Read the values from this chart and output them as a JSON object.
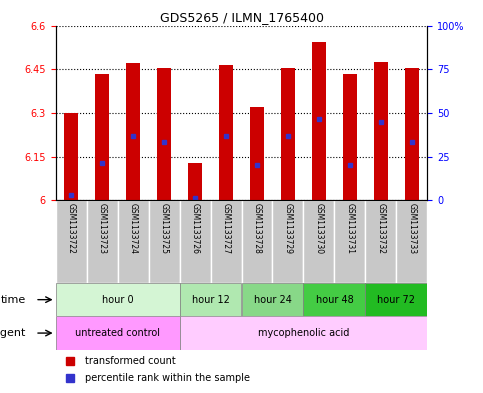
{
  "title": "GDS5265 / ILMN_1765400",
  "samples": [
    "GSM1133722",
    "GSM1133723",
    "GSM1133724",
    "GSM1133725",
    "GSM1133726",
    "GSM1133727",
    "GSM1133728",
    "GSM1133729",
    "GSM1133730",
    "GSM1133731",
    "GSM1133732",
    "GSM1133733"
  ],
  "bar_bottom": 6.0,
  "bar_tops": [
    6.3,
    6.435,
    6.47,
    6.455,
    6.13,
    6.465,
    6.32,
    6.455,
    6.545,
    6.435,
    6.475,
    6.455
  ],
  "blue_values": [
    6.02,
    6.13,
    6.22,
    6.2,
    6.01,
    6.22,
    6.12,
    6.22,
    6.28,
    6.12,
    6.27,
    6.2
  ],
  "ylim": [
    6.0,
    6.6
  ],
  "yticks": [
    6.0,
    6.15,
    6.3,
    6.45,
    6.6
  ],
  "ytick_labels": [
    "6",
    "6.15",
    "6.3",
    "6.45",
    "6.6"
  ],
  "right_yticks": [
    0,
    25,
    50,
    75,
    100
  ],
  "right_ytick_labels": [
    "0",
    "25",
    "50",
    "75",
    "100%"
  ],
  "bar_color": "#cc0000",
  "blue_color": "#3333cc",
  "plot_bg": "#ffffff",
  "sample_bg_color": "#c8c8c8",
  "time_groups": [
    {
      "label": "hour 0",
      "start": 0,
      "end": 4,
      "color": "#d4f5d4"
    },
    {
      "label": "hour 12",
      "start": 4,
      "end": 6,
      "color": "#b0e8b0"
    },
    {
      "label": "hour 24",
      "start": 6,
      "end": 8,
      "color": "#88d888"
    },
    {
      "label": "hour 48",
      "start": 8,
      "end": 10,
      "color": "#44cc44"
    },
    {
      "label": "hour 72",
      "start": 10,
      "end": 12,
      "color": "#22bb22"
    }
  ],
  "agent_groups": [
    {
      "label": "untreated control",
      "start": 0,
      "end": 4,
      "color": "#ff99ff"
    },
    {
      "label": "mycophenolic acid",
      "start": 4,
      "end": 12,
      "color": "#ffccff"
    }
  ],
  "legend_red_label": "transformed count",
  "legend_blue_label": "percentile rank within the sample",
  "time_label": "time",
  "agent_label": "agent"
}
